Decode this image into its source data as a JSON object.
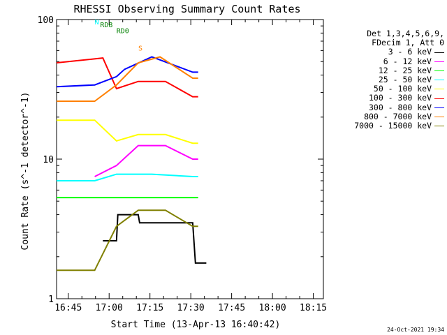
{
  "chart_data": {
    "type": "line",
    "title": "RHESSI Observing Summary Count Rates",
    "xlabel": "Start Time (13-Apr-13 16:40:42)",
    "ylabel": "Count Rate (s^-1 detector^-1)",
    "y_scale": "log",
    "ylim": [
      1,
      100
    ],
    "y_ticks": [
      "1",
      "10",
      "100"
    ],
    "x_ticks": [
      "16:45",
      "17:00",
      "17:15",
      "17:30",
      "17:45",
      "18:00",
      "18:15"
    ],
    "xlim_minutes_after_start": [
      0,
      98
    ],
    "legend_header": [
      "Det 1,3,4,5,6,9,",
      "FDecim 1, Att 0"
    ],
    "legend_placement": "right",
    "series": [
      {
        "name": "3 - 6 keV",
        "color": "#000000",
        "x": [
          17,
          22,
          22.5,
          30,
          30.5,
          50,
          51,
          55
        ],
        "y": [
          2.6,
          2.6,
          4.0,
          4.0,
          3.5,
          3.5,
          1.8,
          1.8
        ]
      },
      {
        "name": "6 - 12 keV",
        "color": "#ff00ff",
        "x": [
          14,
          22,
          30,
          40,
          50,
          52
        ],
        "y": [
          7.5,
          9.0,
          12.5,
          12.5,
          10,
          10
        ]
      },
      {
        "name": "12 - 25 keV",
        "color": "#00ff00",
        "x": [
          0,
          14,
          22,
          30,
          40,
          50,
          52
        ],
        "y": [
          5.3,
          5.3,
          5.3,
          5.3,
          5.3,
          5.3,
          5.3
        ]
      },
      {
        "name": "25 - 50 keV",
        "color": "#00ffff",
        "x": [
          0,
          14,
          22,
          35,
          50,
          52
        ],
        "y": [
          7.0,
          7.0,
          7.8,
          7.8,
          7.5,
          7.5
        ]
      },
      {
        "name": "50 - 100 keV",
        "color": "#ffff00",
        "x": [
          0,
          14,
          22,
          30,
          40,
          50,
          52
        ],
        "y": [
          19,
          19,
          13.5,
          15,
          15,
          13,
          13
        ]
      },
      {
        "name": "100 - 300 keV",
        "color": "#ff0000",
        "x": [
          0,
          17,
          22,
          30,
          40,
          50,
          52
        ],
        "y": [
          49,
          53,
          32,
          36,
          36,
          28,
          28
        ]
      },
      {
        "name": "300 - 800 keV",
        "color": "#0000ff",
        "x": [
          0,
          14,
          22,
          25,
          35,
          50,
          52
        ],
        "y": [
          33,
          34,
          39,
          44,
          54,
          42,
          42
        ]
      },
      {
        "name": "800 - 7000 keV",
        "color": "#ff8000",
        "x": [
          0,
          14,
          22,
          30,
          38,
          50,
          52
        ],
        "y": [
          26,
          26,
          34,
          49,
          54,
          38,
          38
        ]
      },
      {
        "name": "7000 - 15000 keV",
        "color": "#808000",
        "x": [
          0,
          14,
          22,
          30,
          40,
          50,
          52
        ],
        "y": [
          1.6,
          1.6,
          3.3,
          4.3,
          4.3,
          3.3,
          3.3
        ]
      }
    ],
    "annotations": [
      "N",
      "S",
      "RD0",
      "RD8"
    ],
    "annotation_colors": {
      "N": "#00ffff",
      "S": "#ff8000",
      "RD0": "#008000",
      "RD8": "#008000"
    }
  },
  "footer_date": "24-Oct-2021 19:34"
}
